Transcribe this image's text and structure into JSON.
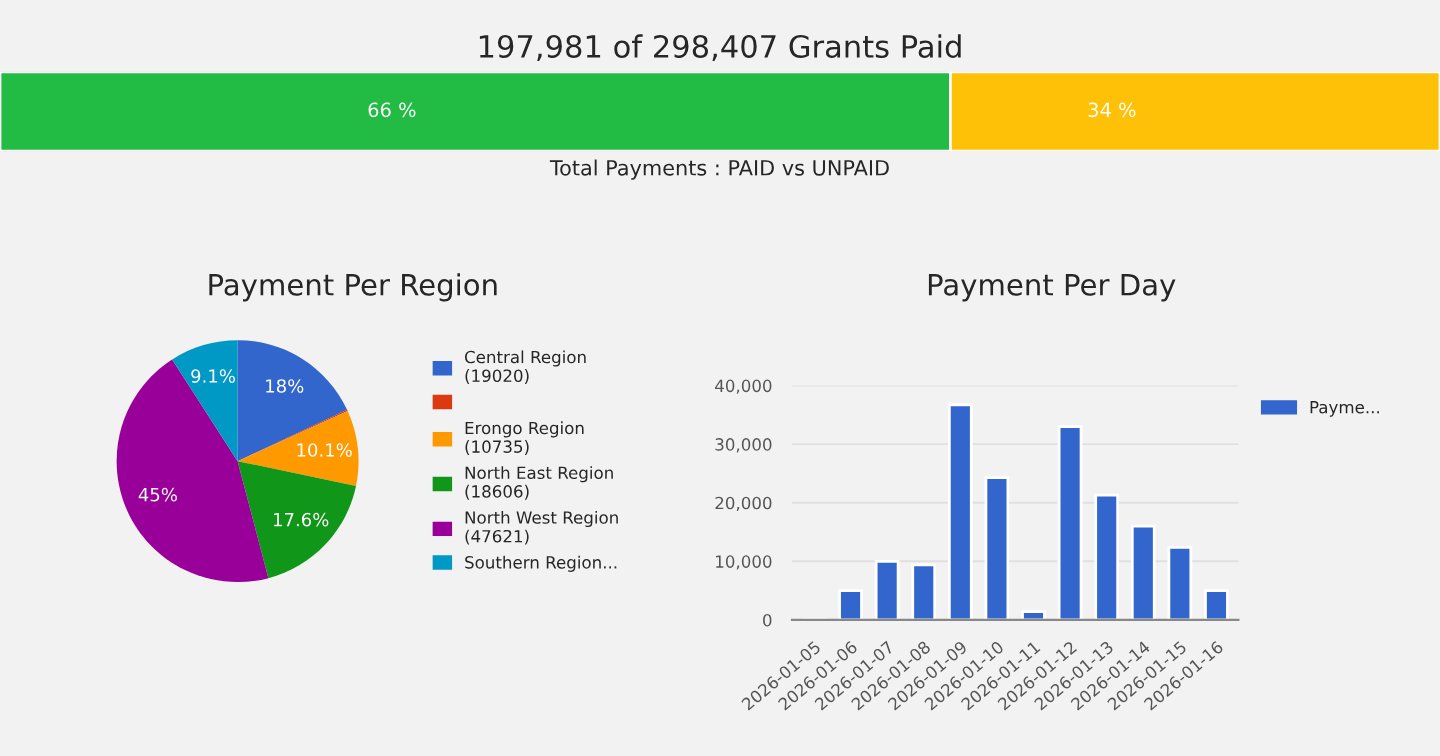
{
  "chart_data": [
    {
      "type": "bar",
      "orientation": "horizontal",
      "stacked": true,
      "title": "197,981 of 298,407 Grants Paid",
      "xlabel": "Total Payments : PAID vs UNPAID",
      "categories": [
        null
      ],
      "xlim": [
        0,
        100
      ],
      "tick_labels": false,
      "series": [
        {
          "color": "#22bb44",
          "values": [
            66
          ],
          "value_labels": [
            "66 %"
          ]
        },
        {
          "color": "#ffc107",
          "values": [
            34
          ],
          "value_labels": [
            "34 %"
          ]
        }
      ]
    },
    {
      "type": "pie",
      "title": "Payment Per Region",
      "categories": [
        "Central Region\n(19020)",
        null,
        "Erongo Region\n(10735)",
        "North East Region\n(18606)",
        "North West Region\n(47621)",
        "Southern Region..."
      ],
      "values": [
        18,
        0.2,
        10.1,
        17.6,
        45,
        9.1
      ],
      "value_labels": [
        "18%",
        null,
        "10.1%",
        "17.6%",
        "45%",
        "9.1%"
      ],
      "colors": [
        "#3366cc",
        "#dc3912",
        "#ff9900",
        "#109618",
        "#990099",
        "#0099c6"
      ],
      "legend": "right"
    },
    {
      "type": "bar",
      "title": "Payment Per Day",
      "categories": [
        "2026-01-05",
        "2026-01-06",
        "2026-01-07",
        "2026-01-08",
        "2026-01-09",
        "2026-01-10",
        "2026-01-11",
        "2026-01-12",
        "2026-01-13",
        "2026-01-14",
        "2026-01-15",
        "2026-01-16"
      ],
      "series": [
        {
          "name": "Payme...",
          "color": "#3366cc",
          "values": [
            100,
            5000,
            10000,
            9400,
            36700,
            24300,
            1400,
            33000,
            21300,
            16000,
            12400,
            5000
          ]
        }
      ],
      "ylim": [
        0,
        40000
      ],
      "yticks": [
        {
          "value": 0,
          "label": "0"
        },
        {
          "value": 10000,
          "label": "10,000"
        },
        {
          "value": 20000,
          "label": "20,000"
        },
        {
          "value": 30000,
          "label": "30,000"
        },
        {
          "value": 40000,
          "label": "40,000"
        }
      ],
      "grid": "y",
      "legend": "top right"
    }
  ]
}
